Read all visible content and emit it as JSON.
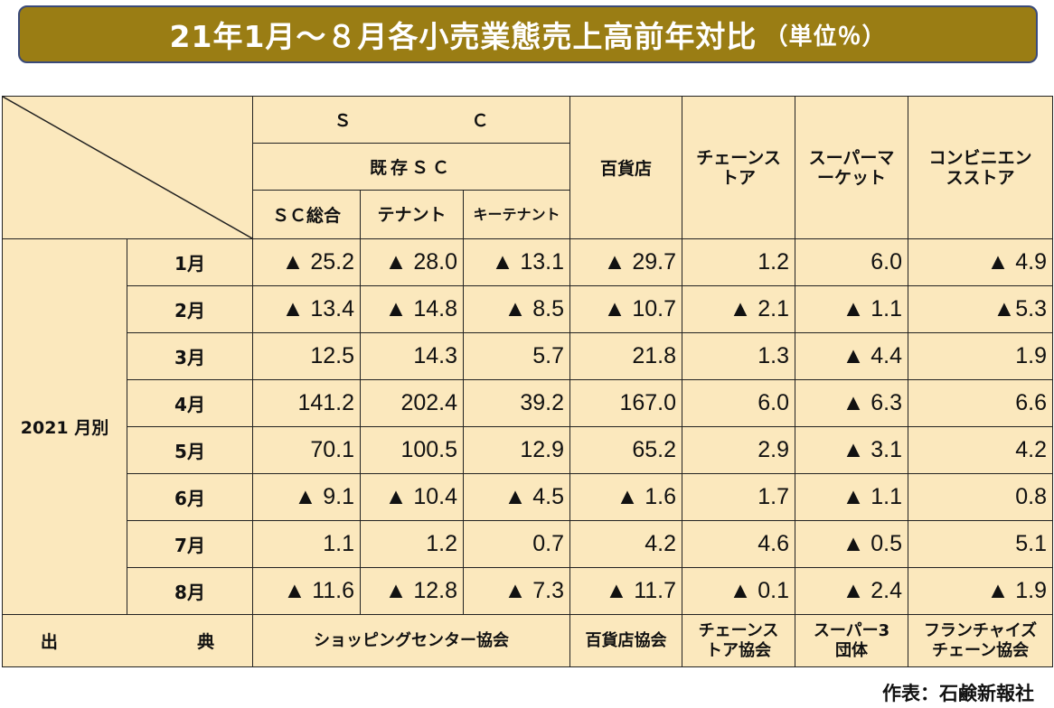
{
  "title": "21年1月～８月各小売業態売上高前年対比",
  "title_unit": "（単位％）",
  "header": {
    "sc_group": "Ｓ　　　　　　　Ｃ",
    "existing_sc": "既存ＳＣ",
    "sc_total": "ＳＣ総合",
    "tenant": "テナント",
    "key_tenant": "キーテナント",
    "department_store": "百貨店",
    "chain_store": "チェーンストア",
    "supermarket": "スーパーマーケット",
    "convenience_store": "コンビニエンスストア"
  },
  "row_group_label": "2021 月別",
  "rows": [
    {
      "month": "1月",
      "sc_total": "▲ 25.2",
      "tenant": "▲ 28.0",
      "key_tenant": "▲ 13.1",
      "dept": "▲ 29.7",
      "chain": "1.2",
      "super": "6.0",
      "conv": "▲ 4.9"
    },
    {
      "month": "2月",
      "sc_total": "▲ 13.4",
      "tenant": "▲ 14.8",
      "key_tenant": "▲ 8.5",
      "dept": "▲ 10.7",
      "chain": "▲ 2.1",
      "super": "▲ 1.1",
      "conv": "▲5.3"
    },
    {
      "month": "3月",
      "sc_total": "12.5",
      "tenant": "14.3",
      "key_tenant": "5.7",
      "dept": "21.8",
      "chain": "1.3",
      "super": "▲ 4.4",
      "conv": "1.9"
    },
    {
      "month": "4月",
      "sc_total": "141.2",
      "tenant": "202.4",
      "key_tenant": "39.2",
      "dept": "167.0",
      "chain": "6.0",
      "super": "▲ 6.3",
      "conv": "6.6"
    },
    {
      "month": "5月",
      "sc_total": "70.1",
      "tenant": "100.5",
      "key_tenant": "12.9",
      "dept": "65.2",
      "chain": "2.9",
      "super": "▲ 3.1",
      "conv": "4.2"
    },
    {
      "month": "6月",
      "sc_total": "▲ 9.1",
      "tenant": "▲ 10.4",
      "key_tenant": "▲ 4.5",
      "dept": "▲ 1.6",
      "chain": "1.7",
      "super": "▲ 1.1",
      "conv": "0.8"
    },
    {
      "month": "7月",
      "sc_total": "1.1",
      "tenant": "1.2",
      "key_tenant": "0.7",
      "dept": "4.2",
      "chain": "4.6",
      "super": "▲ 0.5",
      "conv": "5.1"
    },
    {
      "month": "8月",
      "sc_total": "▲ 11.6",
      "tenant": "▲ 12.8",
      "key_tenant": "▲ 7.3",
      "dept": "▲ 11.7",
      "chain": "▲ 0.1",
      "super": "▲ 2.4",
      "conv": "▲ 1.9"
    }
  ],
  "source": {
    "label_left": "出",
    "label_right": "典",
    "sc": "ショッピングセンター協会",
    "dept": "百貨店協会",
    "chain": "チェーンストア協会",
    "super": "スーパー3団体",
    "conv": "フランチャイズチェーン協会"
  },
  "credit": "作表：石鹸新報社"
}
